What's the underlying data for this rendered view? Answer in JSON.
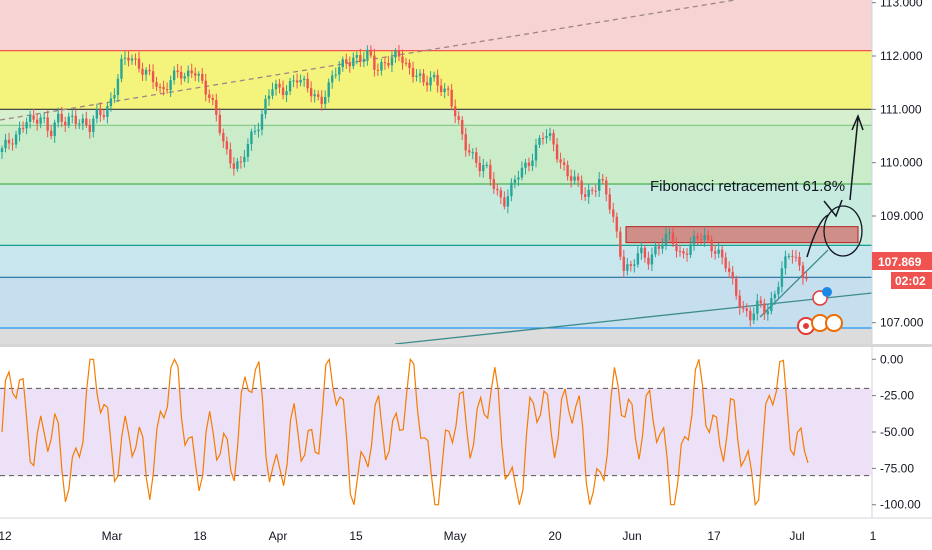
{
  "chart_data": [
    {
      "type": "candlestick",
      "title": "",
      "ylim": [
        106.6,
        113.05
      ],
      "y_ticks": [
        "113.000",
        "112.000",
        "111.000",
        "110.000",
        "109.000",
        "107.000"
      ],
      "x_ticks": [
        "12",
        "Mar",
        "18",
        "Apr",
        "15",
        "May",
        "20",
        "Jun",
        "17",
        "Jul",
        "1"
      ],
      "price_label": "107.869",
      "countdown_label": "02:02",
      "fib_levels": [
        {
          "value": 112.1,
          "color": "#f44336"
        },
        {
          "value": 111.0,
          "color": "#333333"
        },
        {
          "value": 110.7,
          "color": "#81c784"
        },
        {
          "value": 109.6,
          "color": "#4caf50"
        },
        {
          "value": 108.45,
          "color": "#009688"
        },
        {
          "value": 107.85,
          "color": "#1e6fa0"
        },
        {
          "value": 106.9,
          "color": "#2196f3"
        }
      ],
      "fib_zones": [
        {
          "from": 112.1,
          "to": 113.05,
          "color": "#f7d3d3"
        },
        {
          "from": 111.0,
          "to": 112.1,
          "color": "#f4f47d"
        },
        {
          "from": 110.7,
          "to": 111.0,
          "color": "#d6efcf"
        },
        {
          "from": 109.6,
          "to": 110.7,
          "color": "#cbecc9"
        },
        {
          "from": 108.45,
          "to": 109.6,
          "color": "#c7ecdf"
        },
        {
          "from": 107.85,
          "to": 108.45,
          "color": "#c8e6ee"
        },
        {
          "from": 106.9,
          "to": 107.85,
          "color": "#c5dfee"
        },
        {
          "from": 106.6,
          "to": 106.9,
          "color": "#dcdcdc"
        }
      ],
      "resistance_box": {
        "from": 108.5,
        "to": 108.8,
        "color": "#cf8f88"
      },
      "annotation": "Fibonacci retracement 61.8%",
      "price_series": [
        110.2,
        110.4,
        110.6,
        110.8,
        110.7,
        110.9,
        110.6,
        110.8,
        110.7,
        110.9,
        110.8,
        110.6,
        110.9,
        111.0,
        111.3,
        111.8,
        112.0,
        111.9,
        111.7,
        111.5,
        111.3,
        111.6,
        111.7,
        111.5,
        111.8,
        111.6,
        111.2,
        110.8,
        110.3,
        110.0,
        109.9,
        110.4,
        110.7,
        111.1,
        111.4,
        111.3,
        111.5,
        111.6,
        111.4,
        111.3,
        111.2,
        111.4,
        111.7,
        111.9,
        112.0,
        111.9,
        112.0,
        111.8,
        111.9,
        111.9,
        112.0,
        111.8,
        111.7,
        111.4,
        111.6,
        111.5,
        111.3,
        110.8,
        110.4,
        110.2,
        109.9,
        109.8,
        109.5,
        109.3,
        109.5,
        109.8,
        110.0,
        110.3,
        110.5,
        110.4,
        110.1,
        109.8,
        109.6,
        109.4,
        109.5,
        109.7,
        109.3,
        108.8,
        108.1,
        108.0,
        108.3,
        108.2,
        108.4,
        108.5,
        108.6,
        108.3,
        108.4,
        108.5,
        108.6,
        108.5,
        108.3,
        108.0,
        107.6,
        107.3,
        107.1,
        107.3,
        107.2,
        107.6,
        108.0,
        108.3,
        108.1,
        107.9
      ],
      "rsi_ylim": [
        -105,
        5
      ],
      "rsi_ticks": [
        "0.00",
        "-25.00",
        "-50.00",
        "-75.00",
        "-100.00"
      ],
      "rsi_bands": [
        -20,
        -80
      ]
    }
  ]
}
